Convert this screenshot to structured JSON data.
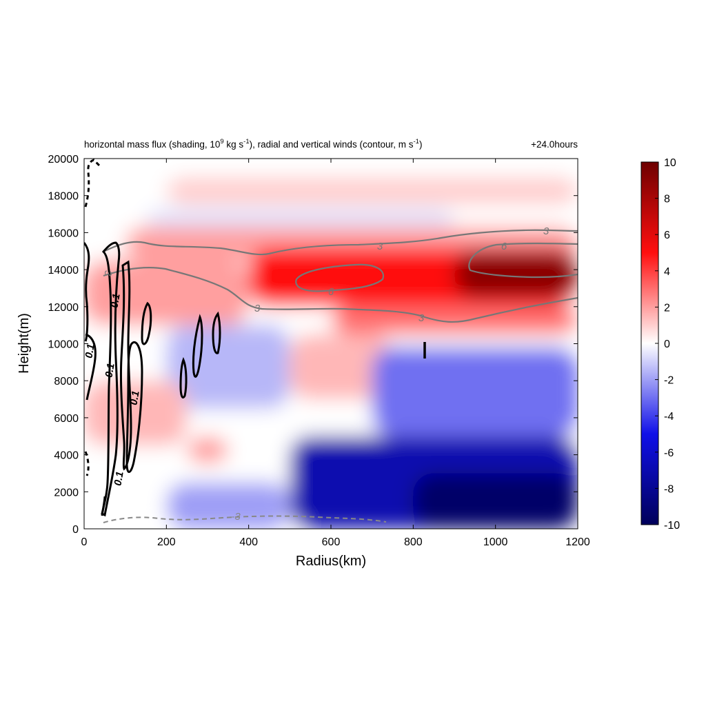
{
  "header": {
    "title_parts": [
      "horizontal mass flux (shading, 10",
      "9",
      " kg s",
      "-1",
      "), radial and vertical winds (contour, m s",
      "-1",
      ")"
    ],
    "time_label": "+24.0hours"
  },
  "chart_data": {
    "type": "heatmap",
    "xlabel": "Radius(km)",
    "ylabel": "Height(m)",
    "xlim": [
      0,
      1200
    ],
    "ylim": [
      0,
      20000
    ],
    "x_ticks": [
      0,
      200,
      400,
      600,
      800,
      1000,
      1200
    ],
    "y_ticks": [
      0,
      2000,
      4000,
      6000,
      8000,
      10000,
      12000,
      14000,
      16000,
      18000,
      20000
    ],
    "colorbar": {
      "min": -10,
      "max": 10,
      "ticks": [
        10,
        8,
        6,
        4,
        2,
        0,
        -2,
        -4,
        -6,
        -8,
        -10
      ],
      "colors": {
        "low": "#00005a",
        "mid_low": "#1010e8",
        "zero": "#ffffff",
        "mid_high": "#ff0f0f",
        "high": "#6e0000"
      }
    },
    "shading_regions": [
      {
        "r": [
          0,
          1200
        ],
        "z": [
          0,
          19500
        ],
        "value": 0
      },
      {
        "r": [
          200,
          1200
        ],
        "z": [
          17500,
          19000
        ],
        "value": 1
      },
      {
        "r": [
          150,
          900
        ],
        "z": [
          16200,
          17300
        ],
        "value": -0.6
      },
      {
        "r": [
          100,
          1200
        ],
        "z": [
          14500,
          16300
        ],
        "value": 2
      },
      {
        "r": [
          400,
          1200
        ],
        "z": [
          12000,
          15200
        ],
        "value": 5
      },
      {
        "r": [
          900,
          1200
        ],
        "z": [
          12500,
          15000
        ],
        "value": 9
      },
      {
        "r": [
          0,
          400
        ],
        "z": [
          11000,
          14500
        ],
        "value": 2
      },
      {
        "r": [
          600,
          1200
        ],
        "z": [
          10500,
          12000
        ],
        "value": 3
      },
      {
        "r": [
          200,
          500
        ],
        "z": [
          6500,
          11000
        ],
        "value": -1.5
      },
      {
        "r": [
          500,
          750
        ],
        "z": [
          7000,
          10500
        ],
        "value": 1.5
      },
      {
        "r": [
          700,
          1200
        ],
        "z": [
          5000,
          9800
        ],
        "value": -3
      },
      {
        "r": [
          250,
          350
        ],
        "z": [
          3500,
          5000
        ],
        "value": 2
      },
      {
        "r": [
          0,
          250
        ],
        "z": [
          4500,
          8000
        ],
        "value": 1.5
      },
      {
        "r": [
          500,
          1200
        ],
        "z": [
          0,
          5000
        ],
        "value": -7
      },
      {
        "r": [
          800,
          1200
        ],
        "z": [
          0,
          3000
        ],
        "value": -9.5
      },
      {
        "r": [
          200,
          500
        ],
        "z": [
          0,
          2500
        ],
        "value": -2
      }
    ],
    "contours": {
      "radial_wind_solid_gray": [
        {
          "level": 3,
          "labels_at": [
            [
              720,
              15200
            ],
            [
              1120,
              16000
            ],
            [
              410,
              11900
            ],
            [
              40,
              13900
            ]
          ]
        },
        {
          "level": 6,
          "labels_at": [
            [
              600,
              12800
            ],
            [
              1020,
              15100
            ]
          ]
        }
      ],
      "radial_wind_dashed_gray": [
        {
          "level": -3,
          "labels_at": [
            [
              370,
              600
            ]
          ]
        }
      ],
      "vertical_wind_solid_black": [
        {
          "level": 0.1,
          "labels_at": [
            [
              85,
              12300
            ],
            [
              30,
              9900
            ],
            [
              70,
              8600
            ],
            [
              130,
              6800
            ],
            [
              90,
              2800
            ]
          ]
        }
      ]
    }
  }
}
